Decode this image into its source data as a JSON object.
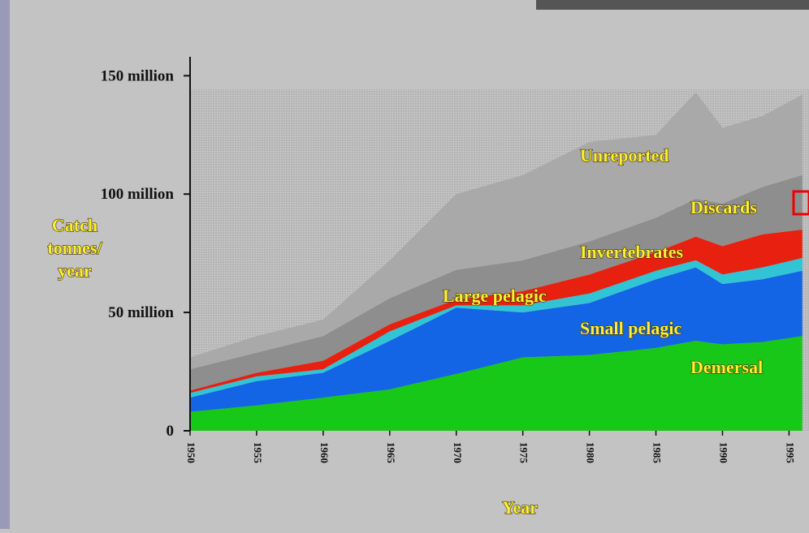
{
  "chart_data": {
    "type": "stacked-area",
    "ylabel": [
      "Catch",
      "tonnes/",
      "year"
    ],
    "xlabel": "Year",
    "x": [
      1950,
      1955,
      1960,
      1965,
      1970,
      1975,
      1980,
      1985,
      1988,
      1990,
      1993,
      1996
    ],
    "xlim": [
      1950,
      1996.5
    ],
    "xticks": [
      1950,
      1955,
      1960,
      1965,
      1970,
      1975,
      1980,
      1985,
      1990,
      1995
    ],
    "ylim": [
      0,
      158000000
    ],
    "yticks": [
      0,
      {
        "value": 50000000,
        "label": "50  million"
      },
      {
        "value": 100000000,
        "label": "100  million"
      },
      {
        "value": 150000000,
        "label": "150  million"
      }
    ],
    "series": [
      {
        "name": "Demersal",
        "color": "#18c818",
        "values": [
          8000000,
          10700000,
          14000000,
          17500000,
          24000000,
          31000000,
          32000000,
          35000000,
          38000000,
          36500000,
          37500000,
          40000000
        ]
      },
      {
        "name": "Small pelagic",
        "color": "#1464e6",
        "values": [
          6000000,
          10300000,
          10500000,
          20500000,
          28000000,
          19000000,
          22000000,
          29000000,
          31000000,
          25500000,
          26500000,
          27600000
        ]
      },
      {
        "name": "Large pelagic",
        "color": "#30c4d4",
        "values": [
          2000000,
          2000000,
          1500000,
          4000000,
          1000000,
          3000000,
          4000000,
          3600000,
          3000000,
          4000000,
          5000000,
          5400000
        ]
      },
      {
        "name": "Invertebrates",
        "color": "#e82010",
        "values": [
          1000000,
          1500000,
          3600000,
          3000000,
          2500000,
          6000000,
          8000000,
          7900000,
          10000000,
          12000000,
          14000000,
          12000000
        ]
      },
      {
        "name": "Discards",
        "color": "#8e8e8e",
        "values": [
          9000000,
          8500000,
          10400000,
          11000000,
          12500000,
          13000000,
          14000000,
          14500000,
          16000000,
          18000000,
          20000000,
          23000000
        ]
      },
      {
        "name": "Unreported",
        "color": "#a9a9a9",
        "values": [
          5000000,
          7000000,
          7000000,
          16000000,
          32000000,
          36000000,
          42000000,
          35000000,
          45000000,
          32000000,
          30000000,
          34000000
        ]
      }
    ]
  }
}
